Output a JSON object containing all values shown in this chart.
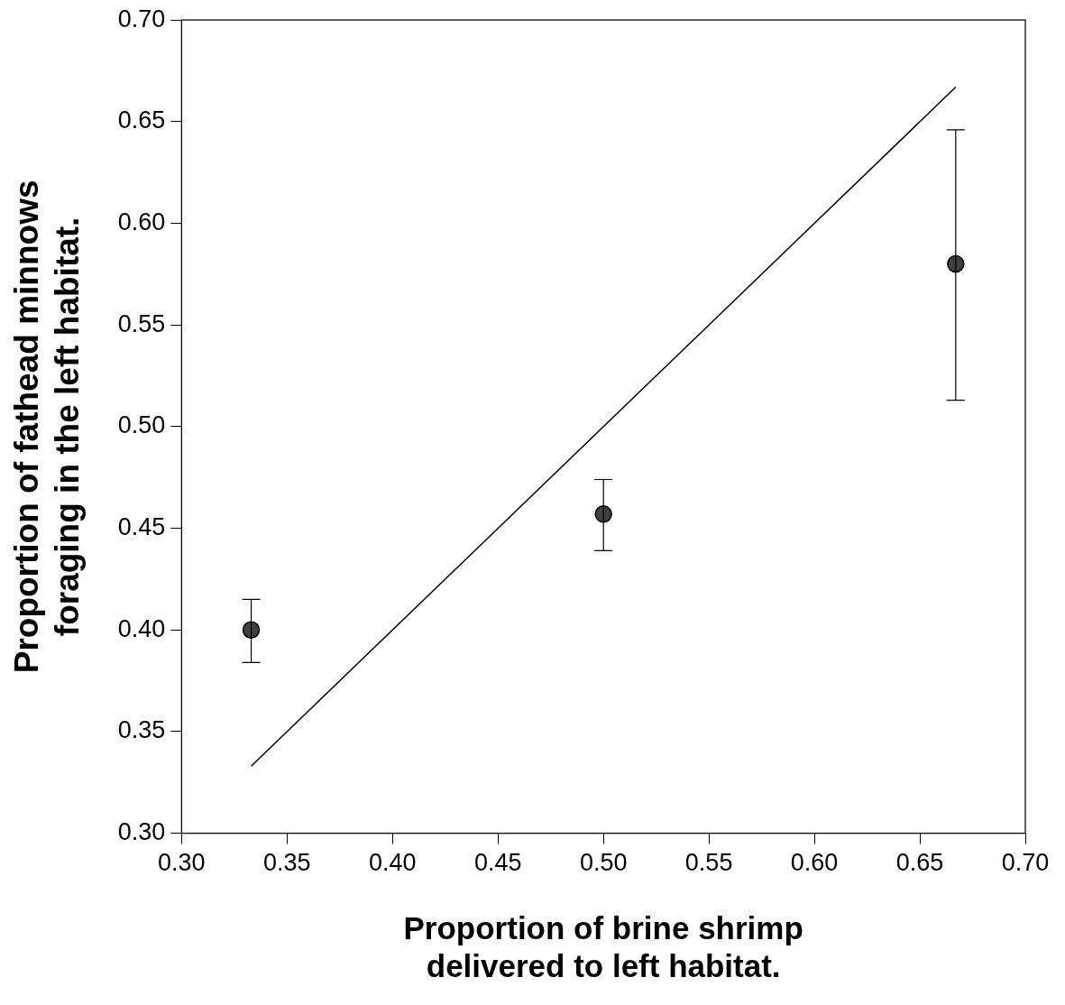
{
  "chart_data": {
    "type": "scatter",
    "xlabel": "Proportion of brine shrimp\ndelivered to left habitat.",
    "ylabel": "Proportion of fathead minnows\nforaging in the left habitat.",
    "xlim": [
      0.3,
      0.7
    ],
    "xticks": [
      {
        "value": 0.3,
        "label": "0.30"
      },
      {
        "value": 0.35,
        "label": "0.35"
      },
      {
        "value": 0.4,
        "label": "0.40"
      },
      {
        "value": 0.45,
        "label": "0.45"
      },
      {
        "value": 0.5,
        "label": "0.50"
      },
      {
        "value": 0.55,
        "label": "0.55"
      },
      {
        "value": 0.6,
        "label": "0.60"
      },
      {
        "value": 0.65,
        "label": "0.65"
      },
      {
        "value": 0.7,
        "label": "0.70"
      }
    ],
    "ylim": [
      0.3,
      0.7
    ],
    "yticks": [
      {
        "value": 0.3,
        "label": "0.30"
      },
      {
        "value": 0.35,
        "label": "0.35"
      },
      {
        "value": 0.4,
        "label": "0.40"
      },
      {
        "value": 0.45,
        "label": "0.45"
      },
      {
        "value": 0.5,
        "label": "0.50"
      },
      {
        "value": 0.55,
        "label": "0.55"
      },
      {
        "value": 0.6,
        "label": "0.60"
      },
      {
        "value": 0.65,
        "label": "0.65"
      },
      {
        "value": 0.7,
        "label": "0.70"
      }
    ],
    "grid": false,
    "legend": false,
    "series": [
      {
        "marker": "circle",
        "color": "#404040",
        "x": [
          0.333,
          0.5,
          0.667
        ],
        "values": [
          0.4,
          0.457,
          0.58
        ],
        "errors": [
          [
            0.384,
            0.415
          ],
          [
            0.439,
            0.474
          ],
          [
            0.513,
            0.646
          ]
        ]
      },
      {
        "type": "line",
        "color": "#000000",
        "line_style": "solid",
        "x": [
          0.333,
          0.667
        ],
        "values": [
          0.333,
          0.667
        ]
      }
    ]
  }
}
